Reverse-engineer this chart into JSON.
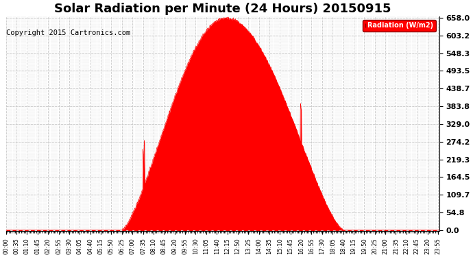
{
  "title": "Solar Radiation per Minute (24 Hours) 20150915",
  "copyright": "Copyright 2015 Cartronics.com",
  "legend_label": "Radiation (W/m2)",
  "background_color": "#ffffff",
  "plot_bg_color": "#ffffff",
  "fill_color": "#ff0000",
  "line_color": "#ff0000",
  "grid_color": "#c8c8c8",
  "dashed_zero_color": "#ff0000",
  "yticks": [
    0.0,
    54.8,
    109.7,
    164.5,
    219.3,
    274.2,
    329.0,
    383.8,
    438.7,
    493.5,
    548.3,
    603.2,
    658.0
  ],
  "ymax": 658.0,
  "ymin": 0.0,
  "title_fontsize": 13,
  "copyright_fontsize": 7.5,
  "tick_fontsize": 6,
  "ytick_fontsize": 8,
  "sunrise_min": 385,
  "sunset_min": 1120,
  "peak_min": 730,
  "peak_value": 658.0
}
